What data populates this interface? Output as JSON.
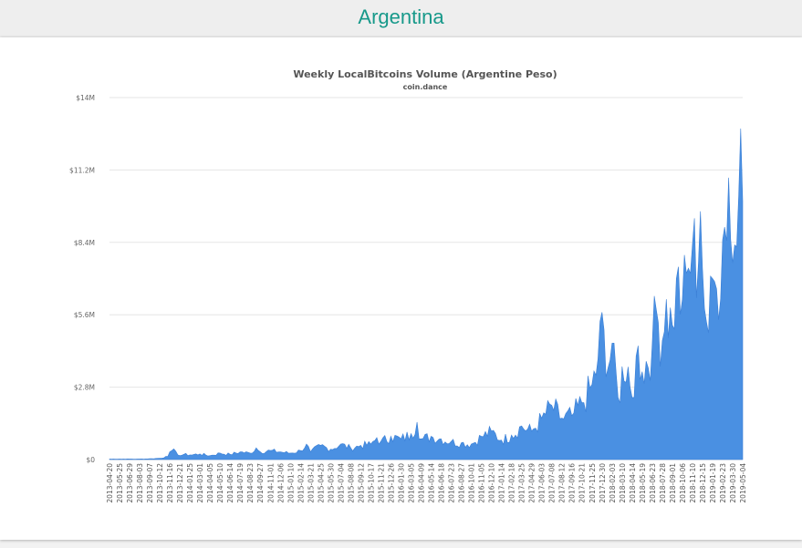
{
  "header": {
    "title": "Argentina"
  },
  "chart_data": {
    "type": "area",
    "title": "Weekly LocalBitcoins Volume (Argentine Peso)",
    "subtitle": "coin.dance",
    "xlabel": "",
    "ylabel": "",
    "ylim": [
      0,
      14000000
    ],
    "y_ticks": [
      "$0",
      "$2.8M",
      "$5.6M",
      "$8.4M",
      "$11.2M",
      "$14M"
    ],
    "x_tick_labels": [
      "2013-04-20",
      "2013-05-25",
      "2013-06-29",
      "2013-08-03",
      "2013-09-07",
      "2013-10-12",
      "2013-11-16",
      "2013-12-21",
      "2014-01-25",
      "2014-03-01",
      "2014-04-05",
      "2014-05-10",
      "2014-06-14",
      "2014-07-19",
      "2014-08-23",
      "2014-09-27",
      "2014-11-01",
      "2014-12-06",
      "2015-01-10",
      "2015-02-14",
      "2015-03-21",
      "2015-04-25",
      "2015-05-30",
      "2015-07-04",
      "2015-08-08",
      "2015-09-12",
      "2015-10-17",
      "2015-11-21",
      "2015-12-26",
      "2016-01-30",
      "2016-03-05",
      "2016-04-09",
      "2016-05-14",
      "2016-06-18",
      "2016-07-23",
      "2016-08-27",
      "2016-10-01",
      "2016-11-05",
      "2016-12-10",
      "2017-01-14",
      "2017-02-18",
      "2017-03-25",
      "2017-04-29",
      "2017-06-03",
      "2017-07-08",
      "2017-08-12",
      "2017-09-16",
      "2017-10-21",
      "2017-11-25",
      "2017-12-30",
      "2018-02-03",
      "2018-03-10",
      "2018-04-14",
      "2018-05-19",
      "2018-06-23",
      "2018-07-28",
      "2018-09-01",
      "2018-10-06",
      "2018-11-10",
      "2018-12-15",
      "2019-01-19",
      "2019-02-23",
      "2019-03-30",
      "2019-05-04"
    ],
    "grid": true,
    "legend": "none",
    "series_color": "#4a90e2",
    "weekly_points": [
      [
        "2013-04-20",
        0.02
      ],
      [
        "2013-05-25",
        0.02
      ],
      [
        "2013-06-29",
        0.02
      ],
      [
        "2013-08-03",
        0.02
      ],
      [
        "2013-09-07",
        0.03
      ],
      [
        "2013-10-12",
        0.05
      ],
      [
        "2013-11-09",
        0.12
      ],
      [
        "2013-11-16",
        0.3
      ],
      [
        "2013-11-23",
        0.35
      ],
      [
        "2013-12-07",
        0.32
      ],
      [
        "2013-12-21",
        0.15
      ],
      [
        "2014-01-04",
        0.2
      ],
      [
        "2014-01-25",
        0.18
      ],
      [
        "2014-03-01",
        0.22
      ],
      [
        "2014-04-05",
        0.15
      ],
      [
        "2014-05-10",
        0.25
      ],
      [
        "2014-06-14",
        0.2
      ],
      [
        "2014-07-19",
        0.3
      ],
      [
        "2014-08-23",
        0.25
      ],
      [
        "2014-09-13",
        0.45
      ],
      [
        "2014-09-27",
        0.3
      ],
      [
        "2014-11-01",
        0.35
      ],
      [
        "2014-12-06",
        0.3
      ],
      [
        "2015-01-10",
        0.25
      ],
      [
        "2015-02-14",
        0.35
      ],
      [
        "2015-03-07",
        0.6
      ],
      [
        "2015-03-21",
        0.3
      ],
      [
        "2015-04-25",
        0.55
      ],
      [
        "2015-05-30",
        0.4
      ],
      [
        "2015-07-04",
        0.6
      ],
      [
        "2015-08-08",
        0.45
      ],
      [
        "2015-09-12",
        0.55
      ],
      [
        "2015-10-17",
        0.6
      ],
      [
        "2015-11-07",
        0.85
      ],
      [
        "2015-11-21",
        0.7
      ],
      [
        "2015-12-26",
        0.9
      ],
      [
        "2016-01-30",
        0.8
      ],
      [
        "2016-03-05",
        1.0
      ],
      [
        "2016-03-26",
        1.45
      ],
      [
        "2016-04-09",
        0.8
      ],
      [
        "2016-05-14",
        0.9
      ],
      [
        "2016-06-18",
        0.8
      ],
      [
        "2016-07-23",
        0.7
      ],
      [
        "2016-08-27",
        0.65
      ],
      [
        "2016-10-01",
        0.6
      ],
      [
        "2016-11-05",
        0.9
      ],
      [
        "2016-12-10",
        1.1
      ],
      [
        "2017-01-14",
        0.75
      ],
      [
        "2017-02-18",
        0.95
      ],
      [
        "2017-03-25",
        1.3
      ],
      [
        "2017-04-29",
        1.1
      ],
      [
        "2017-06-03",
        1.6
      ],
      [
        "2017-07-08",
        2.1
      ],
      [
        "2017-08-12",
        1.6
      ],
      [
        "2017-09-16",
        1.7
      ],
      [
        "2017-10-21",
        2.2
      ],
      [
        "2017-11-25",
        2.9
      ],
      [
        "2017-12-16",
        3.9
      ],
      [
        "2017-12-30",
        5.7
      ],
      [
        "2018-01-13",
        3.2
      ],
      [
        "2018-02-03",
        4.5
      ],
      [
        "2018-02-24",
        2.4
      ],
      [
        "2018-03-10",
        3.6
      ],
      [
        "2018-04-14",
        2.4
      ],
      [
        "2018-05-05",
        4.4
      ],
      [
        "2018-05-19",
        3.4
      ],
      [
        "2018-06-23",
        4.5
      ],
      [
        "2018-07-07",
        5.8
      ],
      [
        "2018-07-28",
        4.6
      ],
      [
        "2018-08-11",
        6.2
      ],
      [
        "2018-09-01",
        5.2
      ],
      [
        "2018-09-15",
        7.0
      ],
      [
        "2018-10-06",
        6.2
      ],
      [
        "2018-10-27",
        7.4
      ],
      [
        "2018-11-10",
        8.3
      ],
      [
        "2018-12-01",
        7.6
      ],
      [
        "2018-12-08",
        9.6
      ],
      [
        "2018-12-15",
        7.4
      ],
      [
        "2019-01-05",
        4.9
      ],
      [
        "2019-01-19",
        7.0
      ],
      [
        "2019-02-02",
        6.6
      ],
      [
        "2019-02-23",
        8.5
      ],
      [
        "2019-03-16",
        10.9
      ],
      [
        "2019-03-30",
        7.6
      ],
      [
        "2019-04-20",
        10.2
      ],
      [
        "2019-04-27",
        12.8
      ],
      [
        "2019-05-04",
        10.0
      ]
    ]
  }
}
